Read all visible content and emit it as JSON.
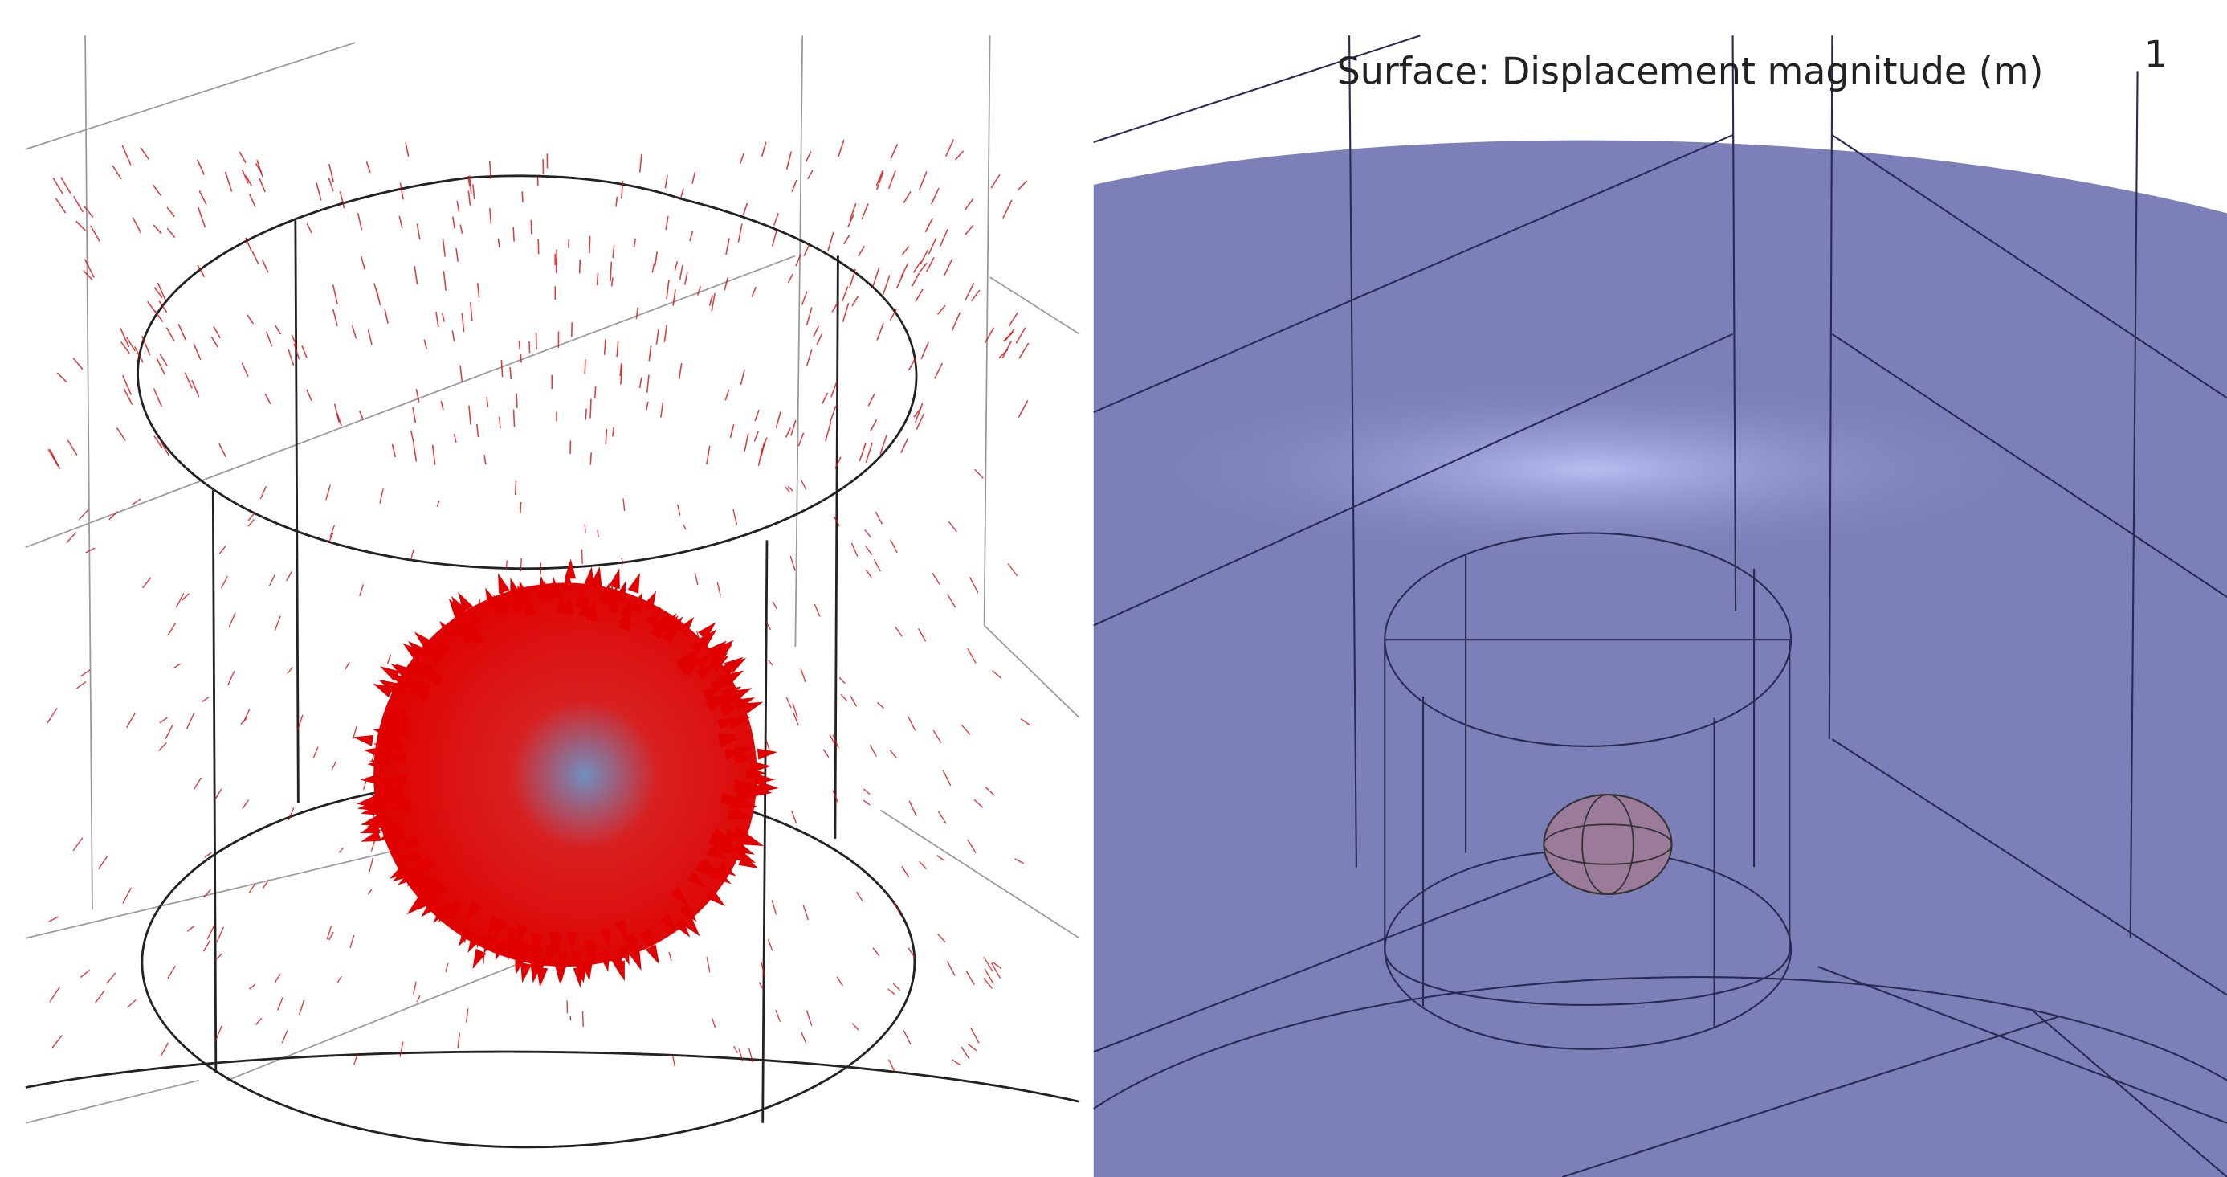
{
  "right_panel": {
    "title": "Surface: Displacement magnitude (m)",
    "label": "1"
  }
}
